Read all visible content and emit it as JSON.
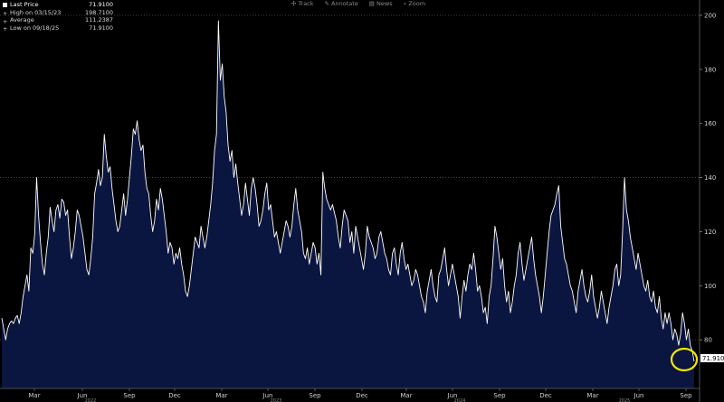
{
  "toolbar": {
    "track": "Track",
    "annotate": "Annotate",
    "news": "News",
    "zoom": "Zoom"
  },
  "legend": [
    {
      "label": "Last Price",
      "value": "71.9100",
      "color": "#ffffff"
    },
    {
      "label": "High on 03/15/23",
      "value": "198.7100",
      "color": "#5a5a5a"
    },
    {
      "label": "Average",
      "value": "111.2387",
      "color": "#5a5a5a"
    },
    {
      "label": "Low on 09/18/25",
      "value": "71.9100",
      "color": "#5a5a5a"
    }
  ],
  "colors": {
    "background": "#000000",
    "line": "#ffffff",
    "fill": "#0a1540",
    "last_price_tag": "#ffffff",
    "highlight_circle": "#f5e600"
  },
  "chart_data": {
    "type": "area",
    "last_price_label": "71.910",
    "y_ticks": [
      80,
      100,
      120,
      140,
      160,
      180,
      200
    ],
    "ylim": [
      62,
      203
    ],
    "x_ticks": [
      "Mar",
      "Jun",
      "Sep",
      "Dec",
      "Mar",
      "Jun",
      "Sep",
      "Dec",
      "Mar",
      "Jun",
      "Sep",
      "Dec",
      "Mar",
      "Jun",
      "Sep"
    ],
    "x_year_labels": [
      "2022",
      "2023",
      "2024",
      "2025"
    ],
    "grid": true,
    "annotation": "circle around last value",
    "series": [
      {
        "values": [
          88,
          84,
          80,
          84,
          86,
          87,
          86,
          88,
          89,
          86,
          90,
          96,
          100,
          104,
          98,
          114,
          112,
          119,
          140,
          126,
          116,
          108,
          104,
          112,
          118,
          129,
          124,
          120,
          128,
          130,
          125,
          132,
          131,
          126,
          128,
          118,
          110,
          114,
          120,
          128,
          126,
          122,
          118,
          112,
          106,
          104,
          110,
          118,
          134,
          138,
          143,
          137,
          140,
          156,
          148,
          142,
          144,
          136,
          130,
          124,
          120,
          122,
          128,
          134,
          126,
          132,
          140,
          148,
          158,
          156,
          161,
          154,
          150,
          152,
          142,
          136,
          134,
          126,
          120,
          124,
          132,
          128,
          136,
          132,
          126,
          120,
          112,
          116,
          114,
          108,
          112,
          110,
          114,
          108,
          104,
          98,
          96,
          100,
          106,
          112,
          118,
          116,
          114,
          122,
          118,
          114,
          118,
          124,
          130,
          138,
          150,
          156,
          198,
          176,
          182,
          170,
          164,
          152,
          146,
          150,
          140,
          145,
          138,
          132,
          126,
          130,
          138,
          132,
          126,
          136,
          140,
          136,
          130,
          122,
          124,
          128,
          134,
          138,
          128,
          130,
          124,
          118,
          120,
          116,
          112,
          116,
          120,
          124,
          122,
          118,
          122,
          130,
          136,
          128,
          124,
          120,
          112,
          110,
          114,
          108,
          112,
          116,
          114,
          108,
          112,
          104,
          142,
          136,
          132,
          130,
          128,
          130,
          127,
          124,
          118,
          114,
          122,
          128,
          126,
          124,
          116,
          120,
          112,
          122,
          118,
          114,
          110,
          106,
          112,
          122,
          118,
          116,
          114,
          110,
          112,
          118,
          120,
          116,
          112,
          110,
          106,
          104,
          112,
          114,
          108,
          104,
          112,
          116,
          110,
          106,
          108,
          104,
          100,
          102,
          106,
          104,
          100,
          96,
          94,
          90,
          98,
          102,
          106,
          100,
          96,
          94,
          104,
          106,
          110,
          114,
          106,
          100,
          104,
          108,
          104,
          100,
          96,
          88,
          96,
          102,
          98,
          104,
          108,
          106,
          112,
          106,
          98,
          100,
          96,
          90,
          92,
          86,
          96,
          100,
          110,
          122,
          118,
          112,
          106,
          110,
          100,
          94,
          98,
          90,
          94,
          100,
          104,
          112,
          116,
          108,
          102,
          106,
          110,
          114,
          118,
          110,
          104,
          100,
          96,
          90,
          96,
          104,
          112,
          120,
          126,
          128,
          130,
          134,
          137,
          122,
          116,
          110,
          108,
          104,
          100,
          98,
          94,
          90,
          98,
          102,
          106,
          100,
          96,
          94,
          98,
          104,
          96,
          92,
          88,
          92,
          98,
          94,
          90,
          86,
          92,
          96,
          100,
          106,
          108,
          100,
          104,
          120,
          140,
          128,
          124,
          118,
          114,
          110,
          106,
          112,
          108,
          104,
          100,
          98,
          102,
          96,
          94,
          98,
          92,
          90,
          96,
          88,
          84,
          90,
          86,
          90,
          86,
          80,
          84,
          82,
          78,
          82,
          90,
          86,
          80,
          84,
          78,
          76,
          72
        ]
      }
    ]
  }
}
